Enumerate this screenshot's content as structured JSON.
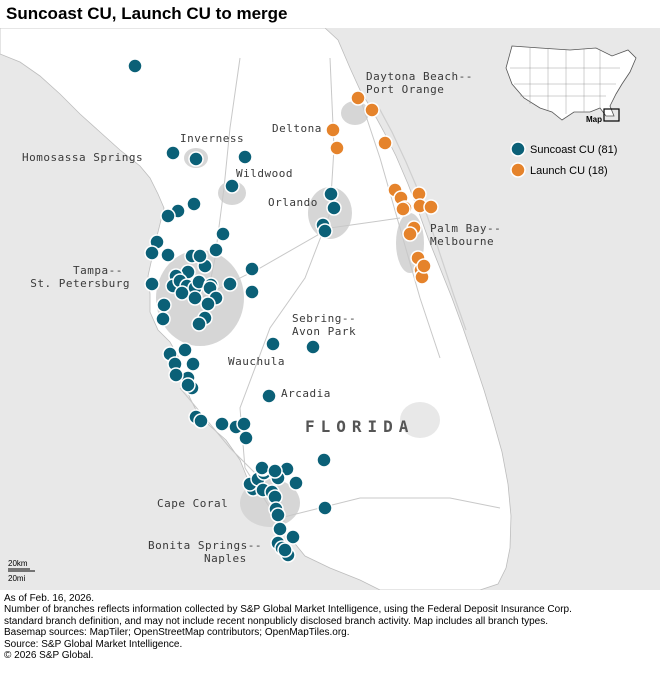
{
  "title": "Suncoast CU, Launch CU to merge",
  "map": {
    "state_label": "FLORIDA",
    "cities": [
      {
        "lines": [
          "Daytona Beach--",
          "Port Orange"
        ]
      },
      {
        "lines": [
          "Deltona"
        ]
      },
      {
        "lines": [
          "Inverness"
        ]
      },
      {
        "lines": [
          "Homosassa Springs"
        ]
      },
      {
        "lines": [
          "Wildwood"
        ]
      },
      {
        "lines": [
          "Orlando"
        ]
      },
      {
        "lines": [
          "Palm Bay--",
          "Melbourne"
        ]
      },
      {
        "lines": [
          "Tampa--",
          "St. Petersburg"
        ]
      },
      {
        "lines": [
          "Sebring--",
          "Avon Park"
        ]
      },
      {
        "lines": [
          "Wauchula"
        ]
      },
      {
        "lines": [
          "Arcadia"
        ]
      },
      {
        "lines": [
          "Cape Coral"
        ]
      },
      {
        "lines": [
          "Bonita Springs--",
          "Naples"
        ]
      }
    ],
    "legend": [
      {
        "label": "Suncoast CU (81)",
        "color": "#0b6077"
      },
      {
        "label": "Launch CU (18)",
        "color": "#e5832b"
      }
    ],
    "inset_label": "Map",
    "scale": {
      "km": "20km",
      "mi": "20mi"
    },
    "colors": {
      "water": "#e8e8e8",
      "land": "#ffffff",
      "urban": "#d6d6d6",
      "suncoast": "#0b6077",
      "launch": "#e5832b"
    }
  },
  "footer": [
    "As of Feb. 16, 2026.",
    "Number of branches reflects information collected by S&P Global Market Intelligence, using the Federal Deposit Insurance Corp.",
    "standard branch definition, and may not include recent nonpublicly disclosed branch activity. Map includes all branch types.",
    "Basemap sources: MapTiler; OpenStreetMap contributors; OpenMapTiles.org.",
    "Source: S&P Global Market Intelligence.",
    "© 2026 S&P Global."
  ]
}
